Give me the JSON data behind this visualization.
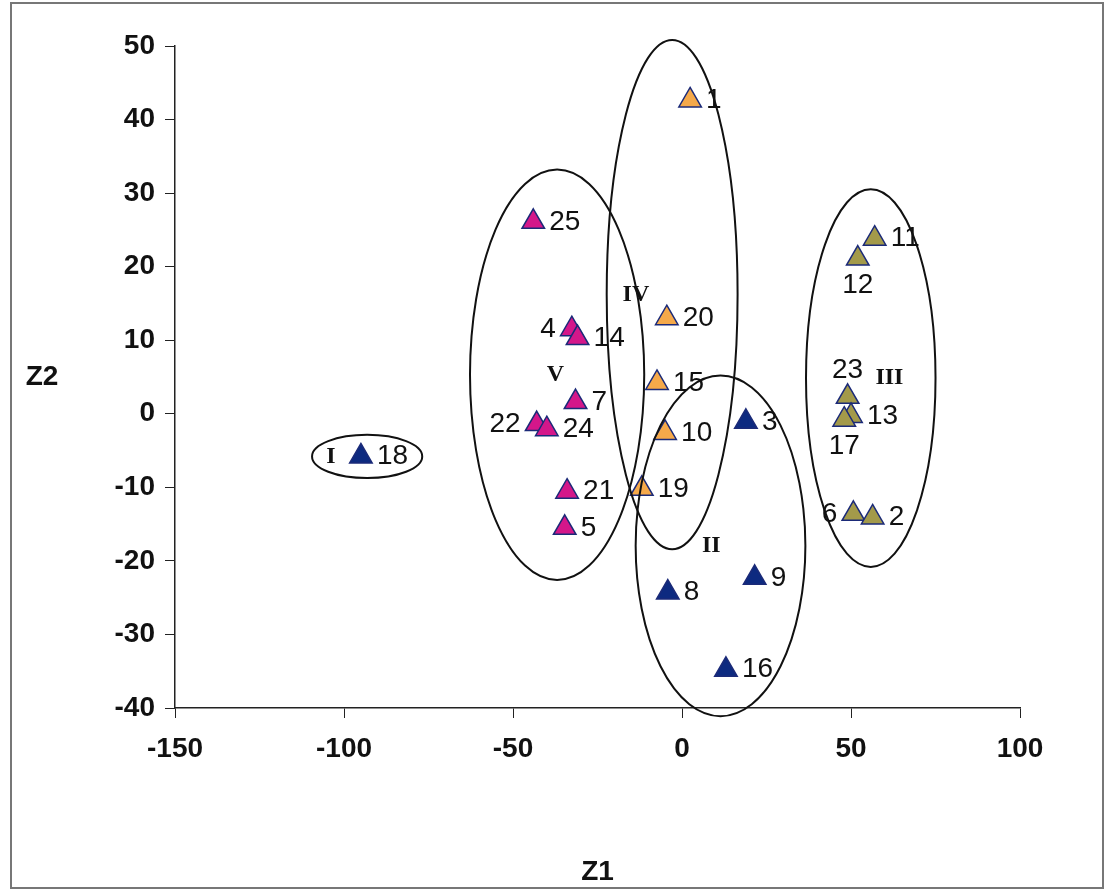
{
  "chart_data": {
    "type": "scatter",
    "xlabel": "Z1",
    "ylabel": "Z2",
    "marker": "triangle",
    "grid": false,
    "legend": false,
    "xlim": [
      -150,
      100
    ],
    "xticks": [
      -150,
      -100,
      -50,
      0,
      50,
      100
    ],
    "ylim": [
      -40,
      50
    ],
    "yticks": [
      -40,
      -30,
      -20,
      -10,
      0,
      10,
      20,
      30,
      40,
      50
    ],
    "series": [
      {
        "color": "#0d2a80",
        "x": [
          -95
        ],
        "values": [
          -5.8
        ]
      },
      {
        "color": "#0d2a80",
        "x": [
          18.9,
          21.5,
          -4.2,
          13
        ],
        "values": [
          -1.1,
          -22.3,
          -24.3,
          -34.8
        ]
      },
      {
        "color": "#a39a4a",
        "x": [
          57,
          52,
          49,
          50,
          48,
          50.7,
          56.4
        ],
        "values": [
          23.8,
          21.1,
          2.3,
          -0.3,
          -0.8,
          -13.6,
          -14.1
        ]
      },
      {
        "color": "#f5a94a",
        "x": [
          2.4,
          -4.5,
          -7.4,
          -5,
          -11.9
        ],
        "values": [
          42.6,
          13,
          4.2,
          -2.6,
          -10.2
        ]
      },
      {
        "color": "#d4178a",
        "x": [
          -44,
          -32.6,
          -30.9,
          -31.5,
          -43,
          -40,
          -34,
          -34.7
        ],
        "values": [
          26.1,
          11.5,
          10.3,
          1.6,
          -1.4,
          -2.1,
          -10.6,
          -15.5
        ]
      }
    ],
    "annotations": [
      {
        "text": "18",
        "x": -95,
        "y": -5.8
      },
      {
        "text": "3",
        "x": 18.9,
        "y": -1.1
      },
      {
        "text": "9",
        "x": 21.5,
        "y": -22.3
      },
      {
        "text": "8",
        "x": -4.2,
        "y": -24.3
      },
      {
        "text": "16",
        "x": 13,
        "y": -34.8
      },
      {
        "text": "11",
        "x": 57,
        "y": 23.8
      },
      {
        "text": "12",
        "x": 52,
        "y": 21.1
      },
      {
        "text": "23",
        "x": 49,
        "y": 2.3
      },
      {
        "text": "13",
        "x": 50,
        "y": -0.3
      },
      {
        "text": "17",
        "x": 48,
        "y": -0.8
      },
      {
        "text": "6",
        "x": 50.7,
        "y": -13.6
      },
      {
        "text": "2",
        "x": 56.4,
        "y": -14.1
      },
      {
        "text": "1",
        "x": 2.4,
        "y": 42.6
      },
      {
        "text": "20",
        "x": -4.5,
        "y": 13
      },
      {
        "text": "15",
        "x": -7.4,
        "y": 4.2
      },
      {
        "text": "10",
        "x": -5,
        "y": -2.6
      },
      {
        "text": "19",
        "x": -11.9,
        "y": -10.2
      },
      {
        "text": "25",
        "x": -44,
        "y": 26.1
      },
      {
        "text": "4",
        "x": -32.6,
        "y": 11.5
      },
      {
        "text": "14",
        "x": -30.9,
        "y": 10.3
      },
      {
        "text": "7",
        "x": -31.5,
        "y": 1.6
      },
      {
        "text": "22",
        "x": -43,
        "y": -1.4
      },
      {
        "text": "24",
        "x": -40,
        "y": -2.1
      },
      {
        "text": "21",
        "x": -34,
        "y": -10.6
      },
      {
        "text": "5",
        "x": -34.7,
        "y": -15.5
      },
      "I",
      "II",
      "III",
      "IV",
      "V"
    ]
  }
}
